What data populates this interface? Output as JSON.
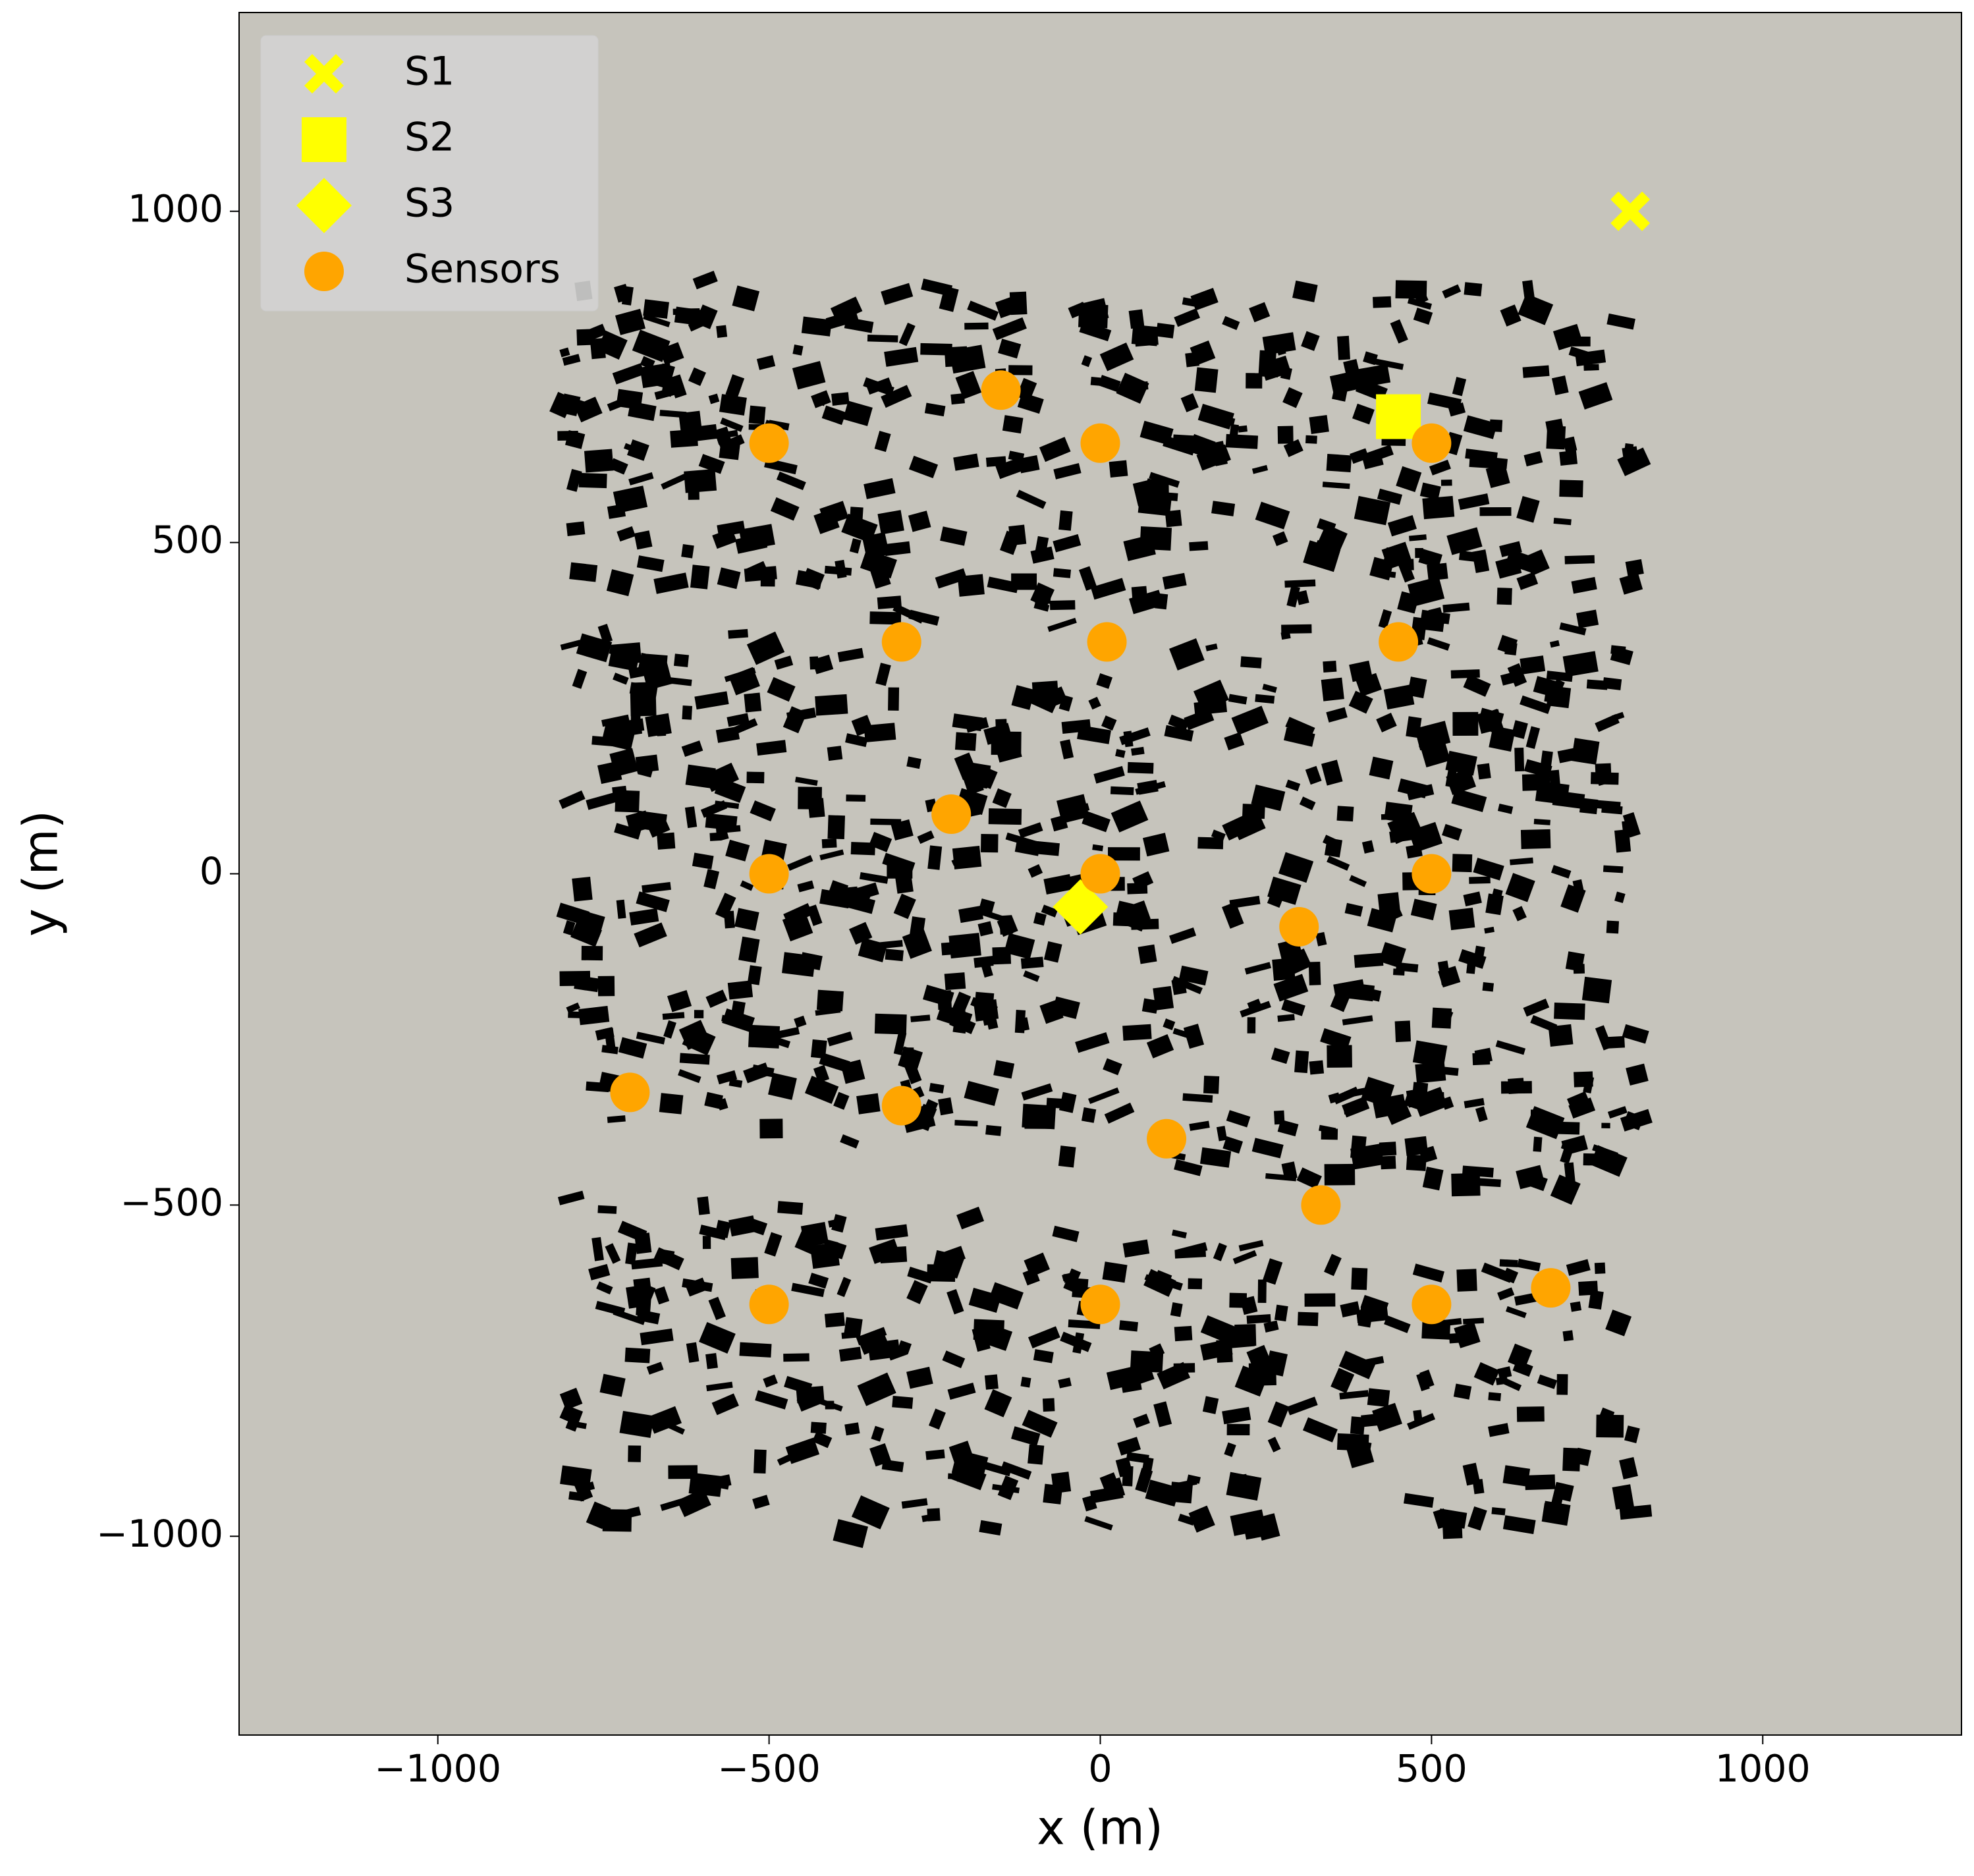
{
  "chart_data": {
    "type": "scatter",
    "xlabel": "x (m)",
    "ylabel": "y (m)",
    "xlim": [
      -1300,
      1300
    ],
    "ylim": [
      -1300,
      1300
    ],
    "xticks": [
      {
        "value": -1000,
        "label": "−1000"
      },
      {
        "value": -500,
        "label": "−500"
      },
      0,
      500,
      1000
    ],
    "yticks": [
      {
        "value": -1000,
        "label": "−1000"
      },
      {
        "value": -500,
        "label": "−500"
      },
      0,
      500,
      1000
    ],
    "background": "#c6c4bc",
    "legend": "upper left",
    "series": [
      {
        "name": "S1",
        "color": "#ffff00",
        "marker": "x",
        "x": [
          800
        ],
        "y": [
          1000
        ]
      },
      {
        "name": "S2",
        "color": "#ffff00",
        "marker": "square",
        "x": [
          450
        ],
        "y": [
          690
        ]
      },
      {
        "name": "S3",
        "color": "#ffff00",
        "marker": "diamond",
        "x": [
          -30
        ],
        "y": [
          -50
        ]
      },
      {
        "name": "Sensors",
        "color": "#ffa500",
        "marker": "circle",
        "x": [
          -500,
          -150,
          0,
          500,
          -300,
          10,
          450,
          -225,
          -500,
          0,
          500,
          300,
          -710,
          -300,
          100,
          333,
          -500,
          0,
          500,
          680
        ],
        "y": [
          650,
          730,
          650,
          650,
          350,
          350,
          350,
          90,
          0,
          0,
          0,
          -80,
          -330,
          -350,
          -400,
          -500,
          -650,
          -650,
          -650,
          -625
        ]
      }
    ]
  }
}
